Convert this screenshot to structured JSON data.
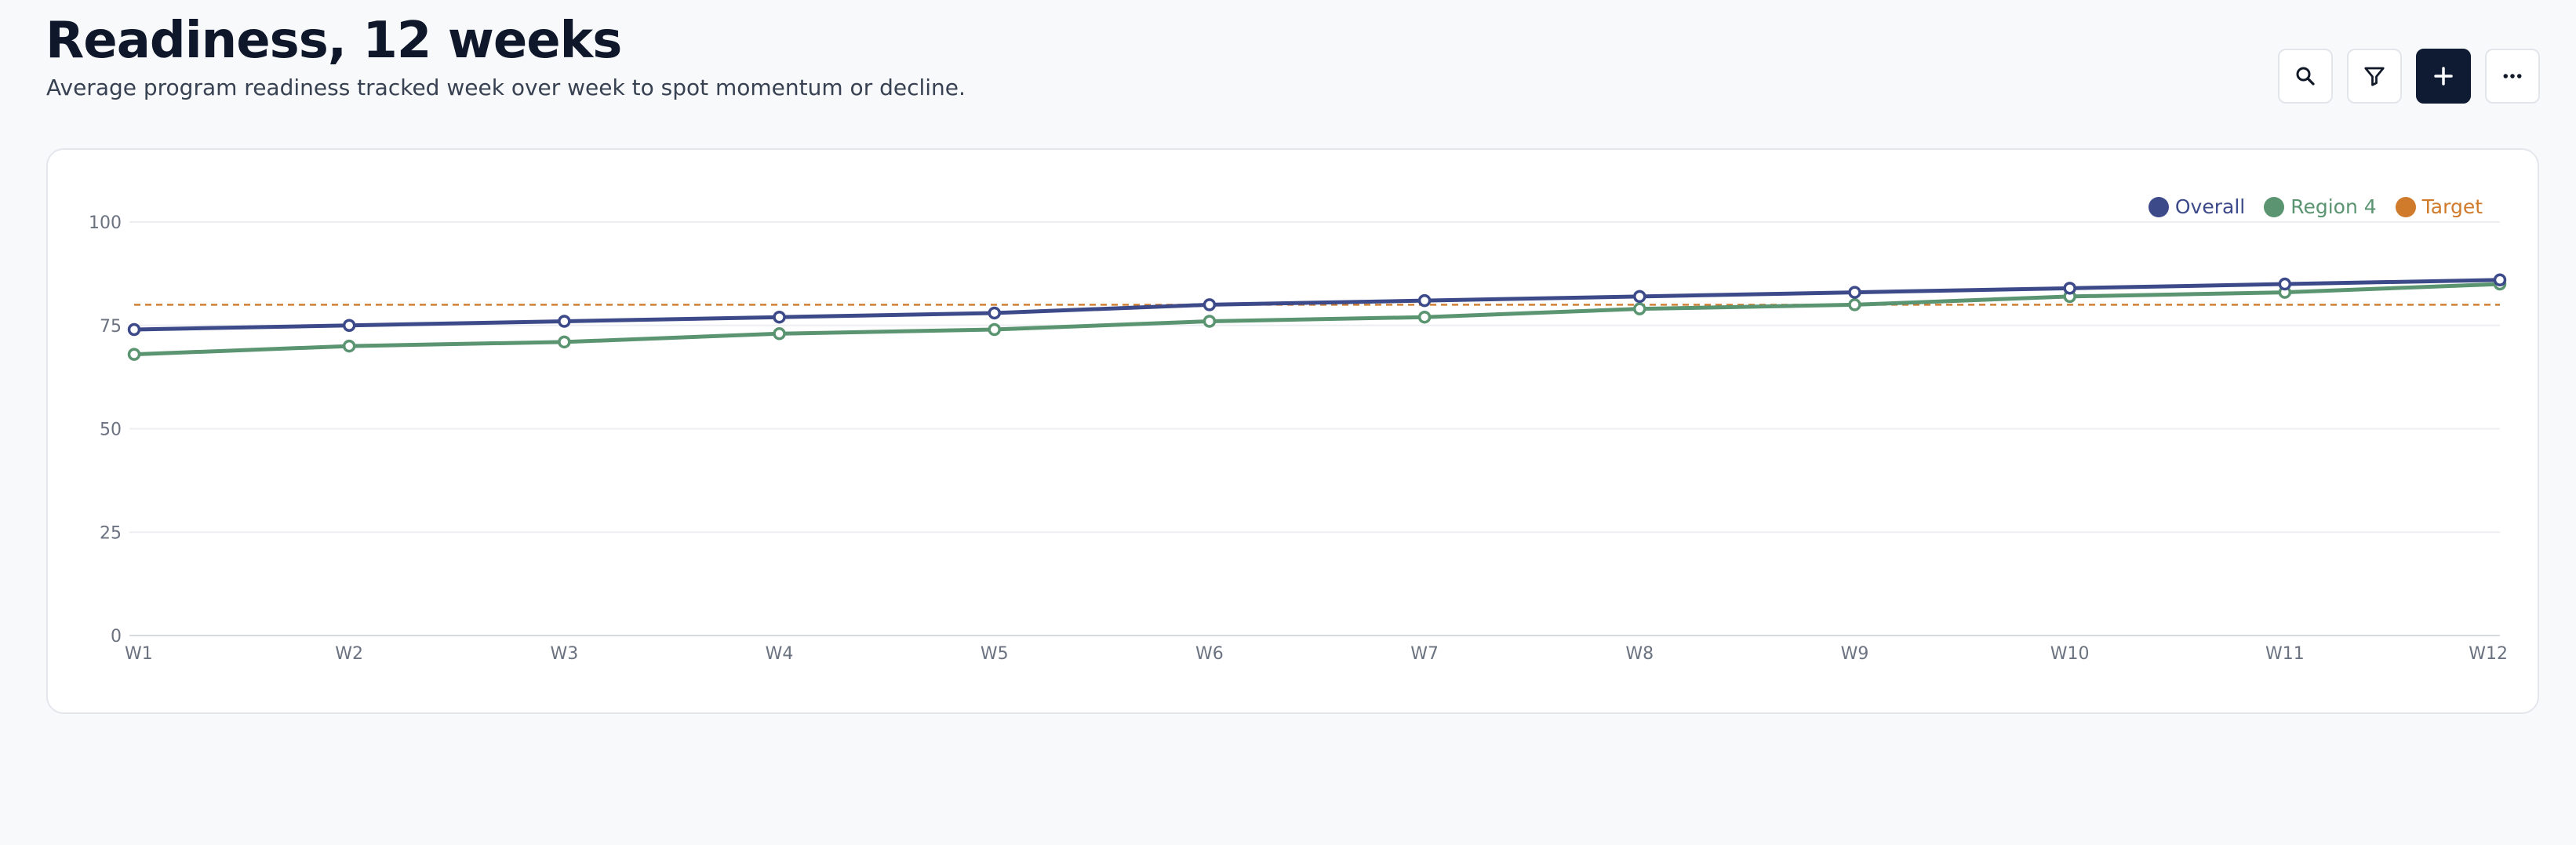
{
  "header": {
    "title": "Readiness, 12 weeks",
    "subtitle": "Average program readiness tracked week over week to spot momentum or decline."
  },
  "toolbar": {
    "buttons": [
      {
        "name": "search-button",
        "icon": "search-icon"
      },
      {
        "name": "filter-button",
        "icon": "filter-icon"
      },
      {
        "name": "add-button",
        "icon": "plus-icon"
      },
      {
        "name": "more-button",
        "icon": "more-horizontal-icon"
      }
    ]
  },
  "colors": {
    "overall": "#3d4a8a",
    "region4": "#5a9470",
    "target": "#d07a2b",
    "grid": "#eceef2",
    "axis": "#d7dbe1"
  },
  "chart_data": {
    "type": "line",
    "categories": [
      "W1",
      "W2",
      "W3",
      "W4",
      "W5",
      "W6",
      "W7",
      "W8",
      "W9",
      "W10",
      "W11",
      "W12"
    ],
    "series": [
      {
        "name": "Overall",
        "values": [
          74,
          75,
          76,
          77,
          78,
          80,
          81,
          82,
          83,
          84,
          85,
          86
        ]
      },
      {
        "name": "Region 4",
        "values": [
          68,
          70,
          71,
          73,
          74,
          76,
          77,
          79,
          80,
          82,
          83,
          85
        ]
      }
    ],
    "reference_lines": [
      {
        "name": "Target",
        "value": 80,
        "style": "dashed"
      }
    ],
    "legend": [
      "Overall",
      "Region 4",
      "Target"
    ],
    "legend_position": "top-right",
    "yticks": [
      0,
      25,
      50,
      75,
      100
    ],
    "ylim": [
      0,
      100
    ],
    "grid": true
  }
}
